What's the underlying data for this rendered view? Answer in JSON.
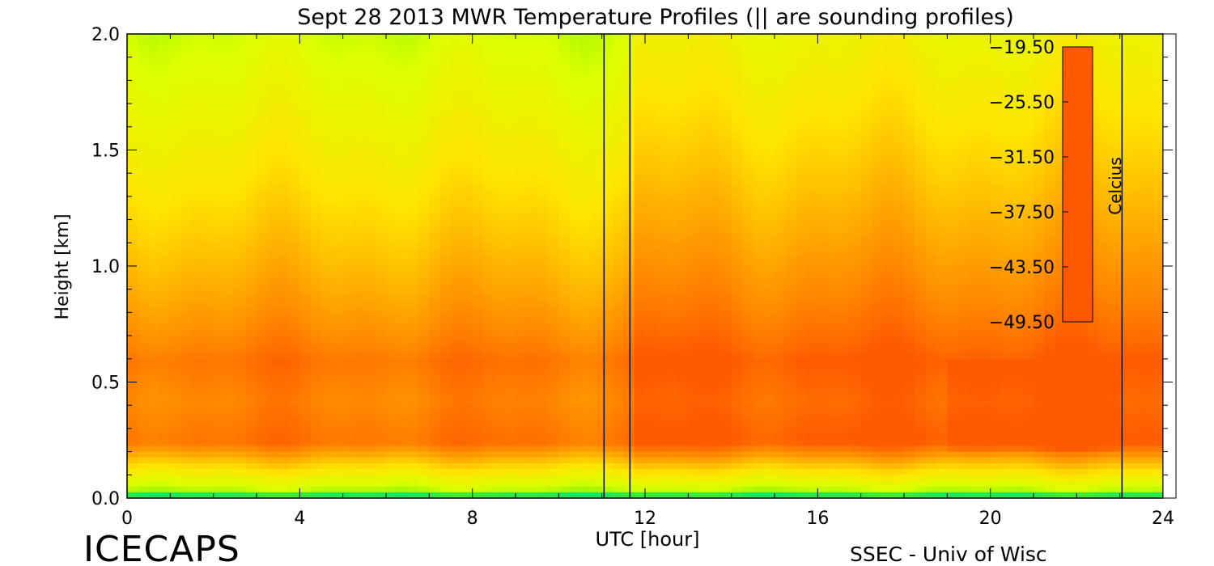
{
  "chart_data": {
    "type": "heatmap",
    "title": "Sept 28 2013 MWR Temperature Profiles (|| are sounding profiles)",
    "xlabel": "UTC [hour]",
    "ylabel": "Height [km]",
    "xlim": [
      0,
      24
    ],
    "ylim": [
      0,
      2.0
    ],
    "x_ticks": [
      0,
      4,
      8,
      12,
      16,
      20,
      24
    ],
    "x_tick_labels": [
      "0",
      "4",
      "8",
      "12",
      "16",
      "20",
      "24"
    ],
    "y_ticks": [
      0.0,
      0.5,
      1.0,
      1.5,
      2.0
    ],
    "y_tick_labels": [
      "0.0",
      "0.5",
      "1.0",
      "1.5",
      "2.0"
    ],
    "sounding_profile_hours": [
      11.05,
      11.65,
      23.05
    ],
    "colorbar": {
      "label": "Celcius",
      "range": [
        -49.5,
        -19.5
      ],
      "tick_values": [
        -19.5,
        -25.5,
        -31.5,
        -37.5,
        -43.5,
        -49.5
      ],
      "tick_labels": [
        "−19.50",
        "−25.50",
        "−31.50",
        "−37.50",
        "−43.50",
        "−49.50"
      ],
      "colors": [
        "#ff5a00",
        "#ff9a00",
        "#ffe400",
        "#dcff00",
        "#64f000",
        "#00e47a",
        "#00f2ff",
        "#0070ff",
        "#3010c8"
      ]
    },
    "field_description_values": {
      "near_surface_km_0_to_0.03": -40,
      "inversion_core_km_0.3_to_0.5_hours_0_to_11": -22,
      "inversion_core_km_0.3_to_0.5_hours_12_to_23": -20.5,
      "top_km_2.0_hours_0_to_11": -31,
      "top_km_2.0_hours_12_to_23": -29
    }
  },
  "branding": {
    "left": "ICECAPS",
    "right": "SSEC - Univ of Wisc"
  }
}
